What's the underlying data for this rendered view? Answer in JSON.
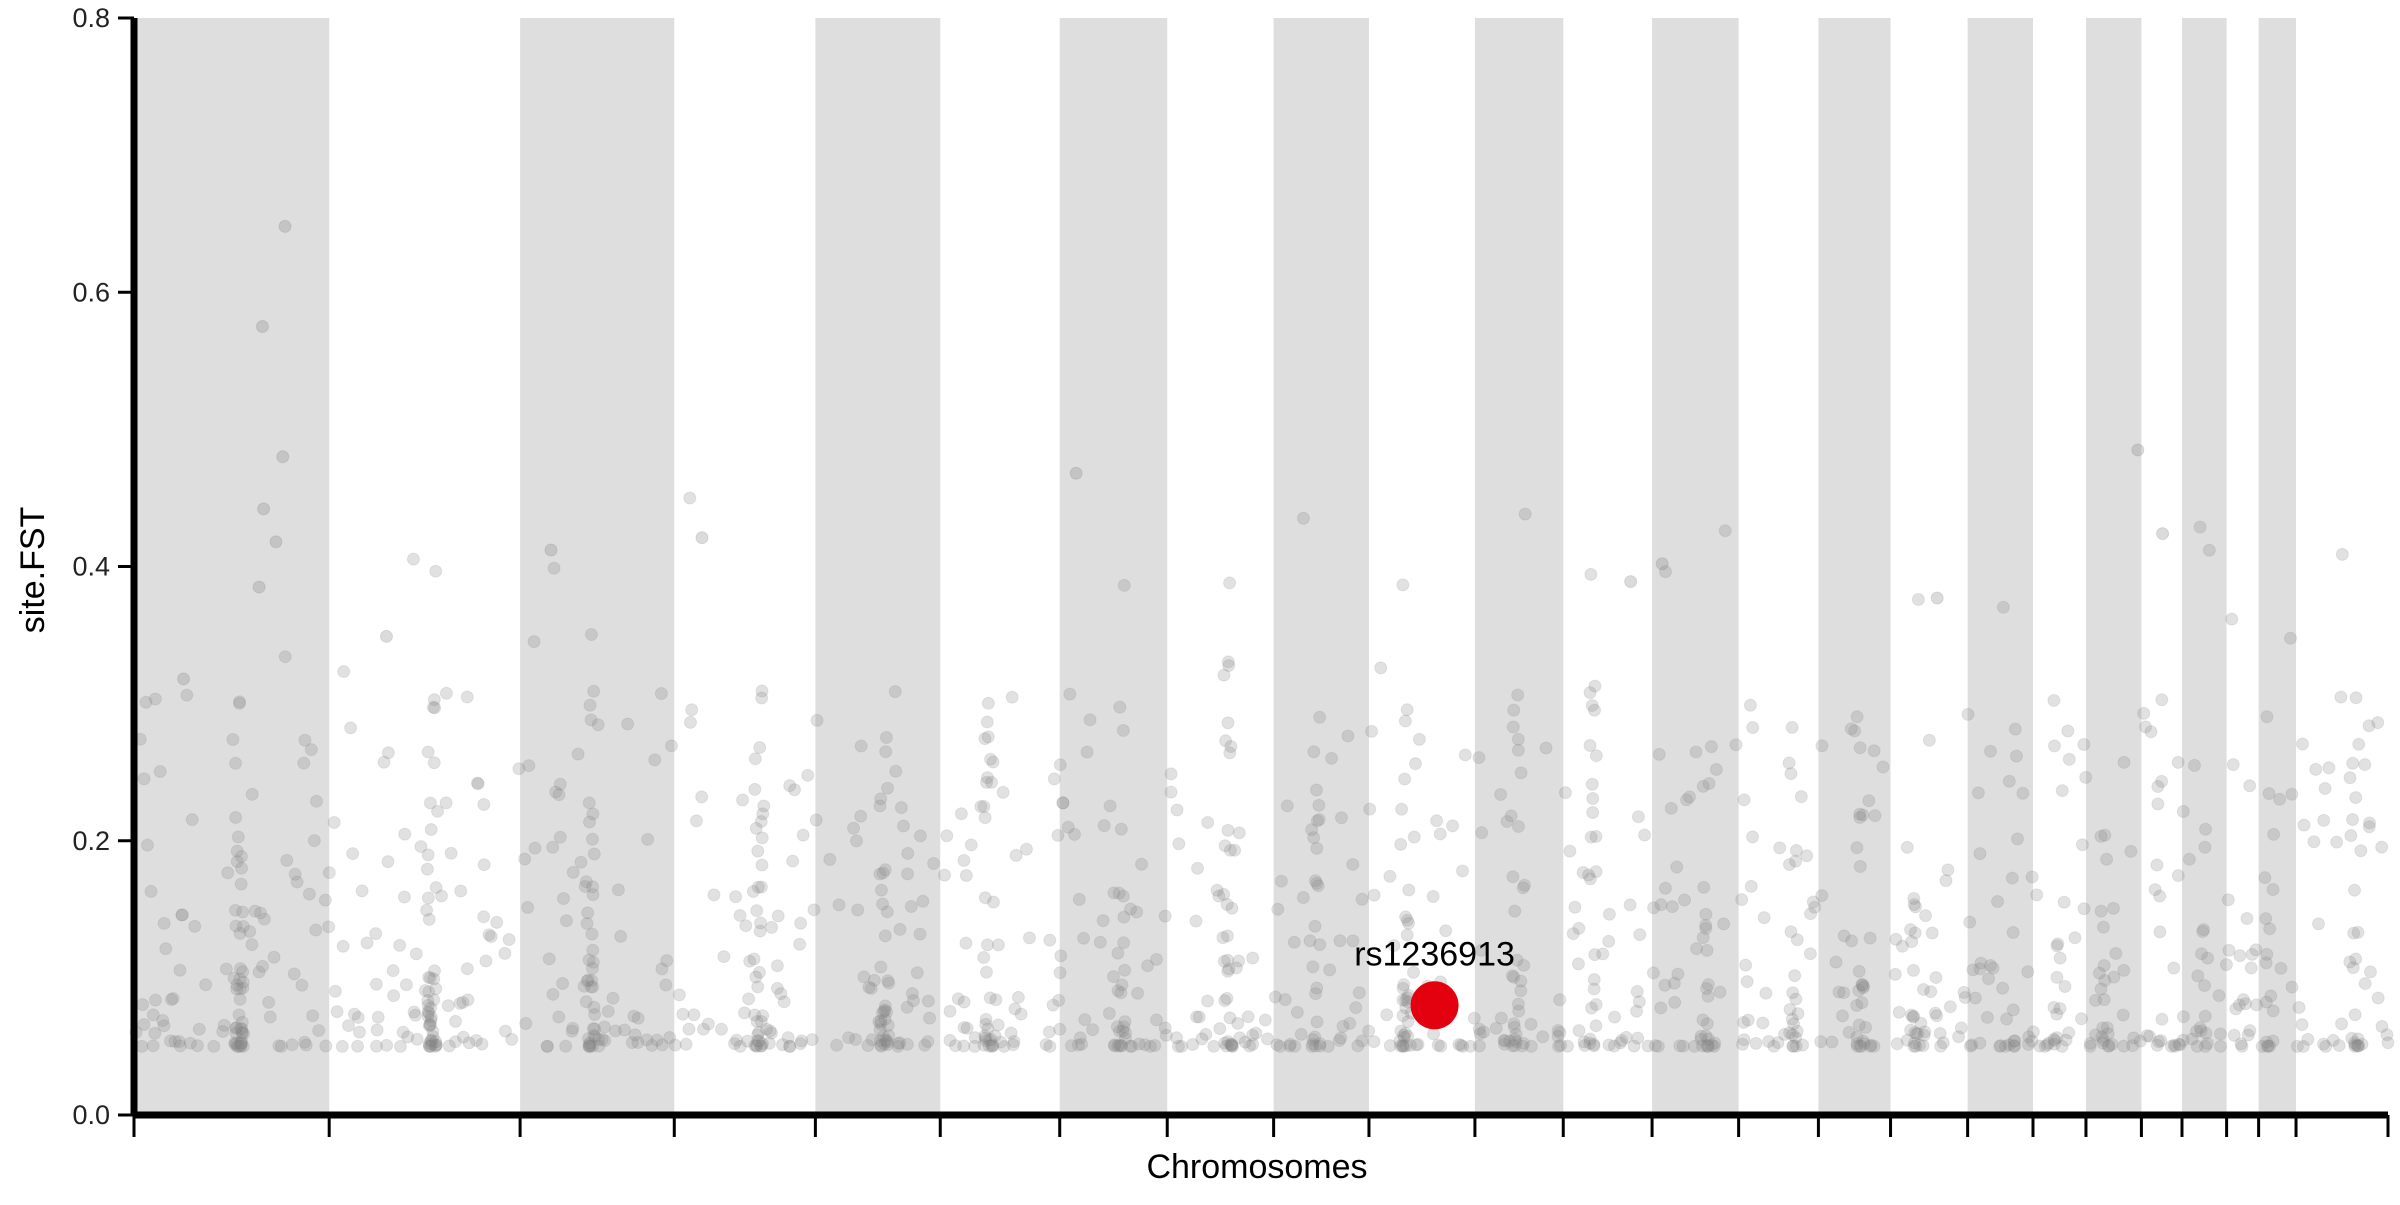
{
  "chart_data": {
    "type": "scatter",
    "title": "",
    "xlabel": "Chromosomes",
    "ylabel": "site.FST",
    "ylim": [
      0,
      0.8
    ],
    "yticks": [
      "0.0",
      "0.2",
      "0.4",
      "0.6",
      "0.8"
    ],
    "grid": false,
    "legend": "none",
    "chromosome_boundaries": [
      0,
      0.0866,
      0.1713,
      0.2397,
      0.3023,
      0.3577,
      0.4107,
      0.4584,
      0.5056,
      0.5479,
      0.5949,
      0.6341,
      0.6735,
      0.7119,
      0.7473,
      0.7793,
      0.8135,
      0.8425,
      0.866,
      0.8906,
      0.9086,
      0.9284,
      0.9426,
      0.9592,
      1.0
    ],
    "x_range": [
      0,
      1
    ],
    "point_color": "#888888",
    "band_color": "#dedede",
    "highlight": {
      "label": "rs1236913",
      "x": 0.577,
      "y": 0.08,
      "color": "#e3000f"
    }
  }
}
